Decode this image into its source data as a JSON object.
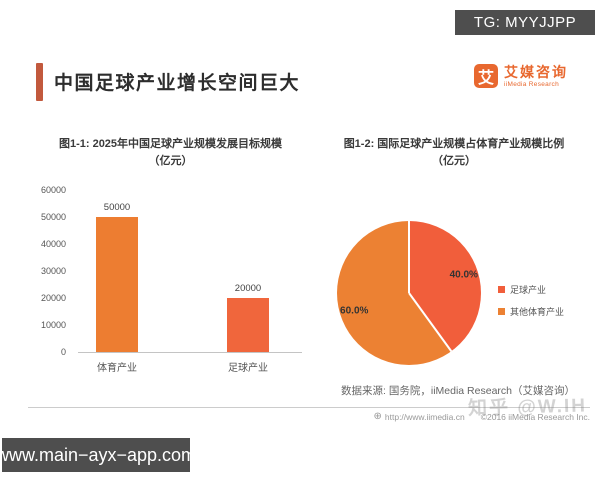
{
  "page": {
    "tg_badge": "TG: MYYJJPP",
    "site_badge": "www.main−ayx−app.com",
    "watermark": "知乎 @W.IH"
  },
  "header": {
    "title": "中国足球产业增长空间巨大",
    "logo": {
      "glyph": "艾",
      "brand": "艾媒咨询",
      "brand_sub": "iiMedia Research"
    }
  },
  "footnote": {
    "source": "数据来源: 国务院，iiMedia Research（艾媒咨询）",
    "url": "http://www.iimedia.cn",
    "copyright": "©2016 iiMedia Research Inc."
  },
  "colors": {
    "accent": "#C2593D",
    "brand_orange": "#E8682F",
    "badge_bg": "#4E4E4E",
    "bar_sports": "#ED7D31",
    "bar_football": "#F0663C",
    "pie_football": "#F15E3B",
    "pie_other": "#EC8133"
  },
  "chart_data": [
    {
      "type": "bar",
      "title": "图1-1: 2025年中国足球产业规模发展目标规模",
      "unit_line": "（亿元）",
      "categories": [
        "体育产业",
        "足球产业"
      ],
      "values": [
        50000,
        20000
      ],
      "data_labels": [
        "50000",
        "20000"
      ],
      "ylim": [
        0,
        60000
      ],
      "yticks": [
        0,
        10000,
        20000,
        30000,
        40000,
        50000,
        60000
      ],
      "grid": false,
      "legend": false,
      "bar_colors": [
        "#ED7D31",
        "#F0663C"
      ]
    },
    {
      "type": "pie",
      "title": "图1-2: 国际足球产业规模占体育产业规模比例",
      "unit_line": "（亿元）",
      "start_angle_deg": 0,
      "slices": [
        {
          "label": "足球产业",
          "value": 40.0,
          "display": "40.0%",
          "color": "#F15E3B"
        },
        {
          "label": "其他体育产业",
          "value": 60.0,
          "display": "60.0%",
          "color": "#EC8133"
        }
      ],
      "legend_position": "right"
    }
  ]
}
